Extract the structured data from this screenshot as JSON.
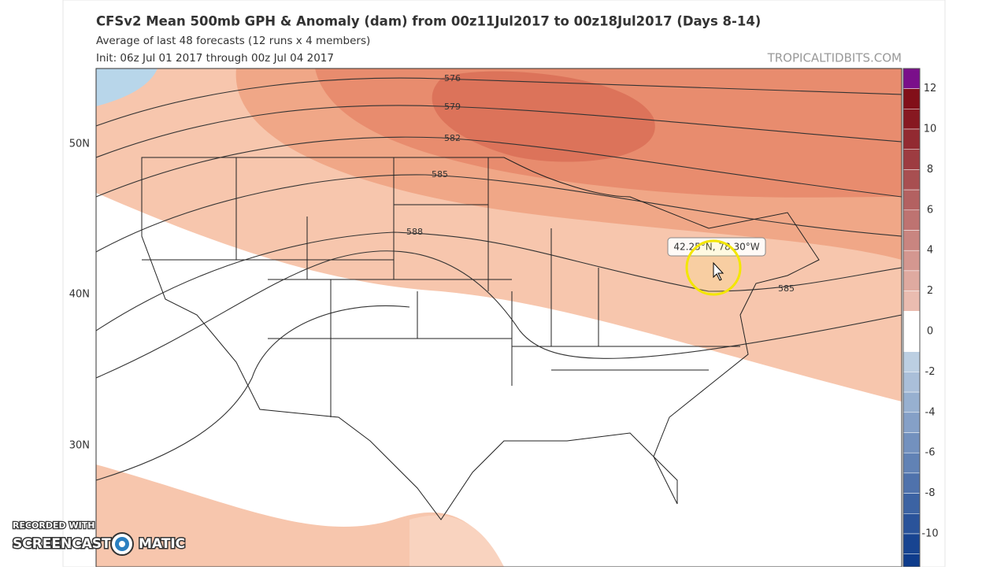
{
  "header": {
    "title": "CFSv2 Mean 500mb GPH & Anomaly (dam) from 00z11Jul2017 to 00z18Jul2017 (Days 8-14)",
    "subtitle": "Average of last 48 forecasts (12 runs x 4 members)",
    "init": "Init: 06z Jul 01 2017 through 00z Jul 04 2017",
    "site": "TROPICALTIDBITS.COM"
  },
  "map": {
    "latitude_labels": [
      "50N",
      "40N",
      "30N"
    ],
    "contour_labels": [
      "576",
      "579",
      "582",
      "585",
      "588",
      "585"
    ],
    "tooltip": "42.25°N, 78.30°W"
  },
  "colorbar": {
    "ticks": [
      12,
      10,
      8,
      6,
      4,
      2,
      0,
      -2,
      -4,
      -6,
      -8,
      -10
    ]
  },
  "watermark": {
    "line1": "RECORDED WITH",
    "brand_left": "SCREENCAST",
    "brand_right": "MATIC"
  }
}
